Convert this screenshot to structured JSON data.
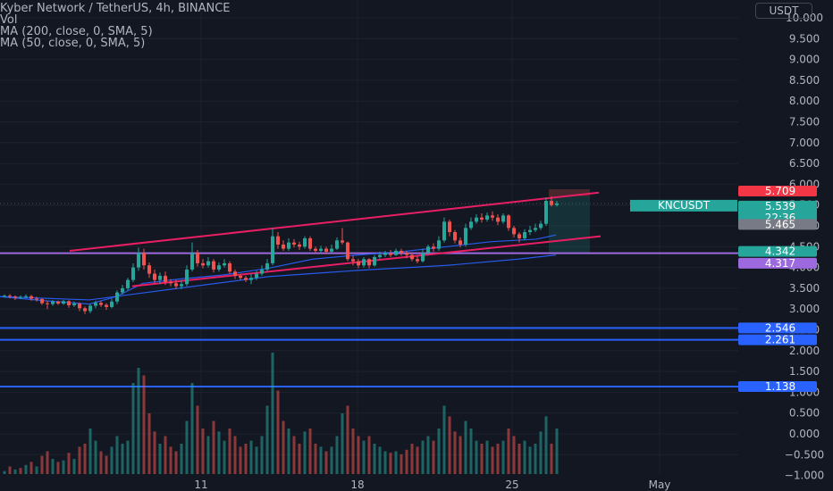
{
  "legend": {
    "symbol": "Kyber Network / TetherUS, 4h, BINANCE",
    "vol": "Vol",
    "ma200": "MA (200, close, 0, SMA, 5)",
    "ma50": "MA (50, close, 0, SMA, 5)"
  },
  "currency": "USDT",
  "symbol_badge": "KNCUSDT",
  "countdown": "22:36",
  "colors": {
    "background": "#131722",
    "up": "#26a69a",
    "down": "#ef5350",
    "channel": "#e91e63",
    "ma": "#2962ff",
    "purple_line": "#9c6ade",
    "blue_line": "#2962ff",
    "axis_text": "#b2b5be"
  },
  "chart_data": {
    "type": "candlestick",
    "y_axis": {
      "ticks": [
        "−1.000",
        "−0.500",
        "0.000",
        "0.500",
        "1.000",
        "1.500",
        "2.000",
        "2.500",
        "3.000",
        "3.500",
        "4.000",
        "4.500",
        "5.000",
        "5.500",
        "6.000",
        "6.500",
        "7.000",
        "7.500",
        "8.000",
        "8.500",
        "9.000",
        "9.500",
        "10.000"
      ],
      "range": [
        -1.0,
        10.0
      ]
    },
    "x_axis": {
      "ticks": [
        "11",
        "18",
        "25",
        "May"
      ]
    },
    "price_labels": [
      {
        "value": "5.709",
        "kind": "high"
      },
      {
        "value": "5.539",
        "kind": "last"
      },
      {
        "value": "5.465",
        "kind": "low"
      },
      {
        "value": "4.342",
        "kind": "line"
      },
      {
        "value": "4.317",
        "kind": "line2"
      },
      {
        "value": "2.546",
        "kind": "level"
      },
      {
        "value": "2.261",
        "kind": "level"
      },
      {
        "value": "1.138",
        "kind": "level"
      }
    ],
    "horizontal_levels": [
      {
        "value": 4.342,
        "color": "#9c6ade"
      },
      {
        "value": 2.546,
        "color": "#2962ff"
      },
      {
        "value": 2.261,
        "color": "#2962ff"
      },
      {
        "value": 1.138,
        "color": "#2962ff"
      }
    ],
    "channel_upper": [
      [
        78,
        4.4
      ],
      [
        670,
        5.8
      ]
    ],
    "channel_lower": [
      [
        148,
        3.55
      ],
      [
        672,
        4.75
      ]
    ],
    "ma200": [
      [
        0,
        3.3
      ],
      [
        100,
        3.22
      ],
      [
        200,
        3.5
      ],
      [
        300,
        3.78
      ],
      [
        400,
        3.93
      ],
      [
        500,
        4.05
      ],
      [
        580,
        4.2
      ],
      [
        622,
        4.3
      ]
    ],
    "ma50": [
      [
        0,
        3.3
      ],
      [
        50,
        3.2
      ],
      [
        100,
        3.12
      ],
      [
        130,
        3.3
      ],
      [
        160,
        3.62
      ],
      [
        200,
        3.72
      ],
      [
        250,
        3.82
      ],
      [
        300,
        3.98
      ],
      [
        350,
        4.2
      ],
      [
        400,
        4.3
      ],
      [
        450,
        4.38
      ],
      [
        500,
        4.5
      ],
      [
        550,
        4.62
      ],
      [
        600,
        4.68
      ],
      [
        622,
        4.78
      ]
    ],
    "candles": [
      [
        5,
        3.3,
        3.32,
        3.35,
        3.28
      ],
      [
        11,
        3.32,
        3.3,
        3.36,
        3.26
      ],
      [
        17,
        3.3,
        3.27,
        3.33,
        3.22
      ],
      [
        23,
        3.27,
        3.29,
        3.33,
        3.24
      ],
      [
        29,
        3.29,
        3.31,
        3.35,
        3.26
      ],
      [
        35,
        3.31,
        3.25,
        3.34,
        3.2
      ],
      [
        41,
        3.25,
        3.24,
        3.3,
        3.18
      ],
      [
        47,
        3.24,
        3.14,
        3.26,
        3.1
      ],
      [
        53,
        3.14,
        3.12,
        3.2,
        3.0
      ],
      [
        59,
        3.12,
        3.18,
        3.22,
        3.08
      ],
      [
        65,
        3.18,
        3.13,
        3.2,
        3.1
      ],
      [
        71,
        3.13,
        3.19,
        3.22,
        3.1
      ],
      [
        77,
        3.19,
        3.09,
        3.21,
        3.03
      ],
      [
        83,
        3.09,
        3.13,
        3.18,
        3.05
      ],
      [
        89,
        3.13,
        3.02,
        3.16,
        2.95
      ],
      [
        95,
        3.02,
        2.95,
        3.06,
        2.88
      ],
      [
        101,
        2.95,
        3.08,
        3.12,
        2.9
      ],
      [
        107,
        3.08,
        3.15,
        3.2,
        3.02
      ],
      [
        113,
        3.15,
        3.1,
        3.2,
        3.05
      ],
      [
        119,
        3.1,
        3.05,
        3.14,
        2.98
      ],
      [
        125,
        3.05,
        3.18,
        3.25,
        3.02
      ],
      [
        131,
        3.18,
        3.4,
        3.45,
        3.12
      ],
      [
        137,
        3.4,
        3.5,
        3.58,
        3.35
      ],
      [
        143,
        3.5,
        3.7,
        3.75,
        3.45
      ],
      [
        149,
        3.7,
        4.0,
        4.1,
        3.65
      ],
      [
        155,
        4.0,
        4.35,
        4.48,
        3.92
      ],
      [
        161,
        4.35,
        4.05,
        4.45,
        3.95
      ],
      [
        167,
        4.05,
        3.85,
        4.12,
        3.75
      ],
      [
        173,
        3.85,
        3.7,
        3.95,
        3.62
      ],
      [
        179,
        3.7,
        3.8,
        3.88,
        3.6
      ],
      [
        185,
        3.8,
        3.65,
        3.9,
        3.58
      ],
      [
        191,
        3.65,
        3.62,
        3.72,
        3.55
      ],
      [
        197,
        3.62,
        3.55,
        3.7,
        3.48
      ],
      [
        203,
        3.55,
        3.6,
        3.7,
        3.48
      ],
      [
        209,
        3.6,
        3.95,
        4.05,
        3.55
      ],
      [
        215,
        3.95,
        4.35,
        4.6,
        3.9
      ],
      [
        221,
        4.35,
        4.1,
        4.42,
        4.02
      ],
      [
        227,
        4.1,
        4.05,
        4.2,
        3.98
      ],
      [
        233,
        4.05,
        4.15,
        4.25,
        4.0
      ],
      [
        239,
        4.15,
        3.95,
        4.2,
        3.88
      ],
      [
        245,
        3.95,
        4.05,
        4.12,
        3.9
      ],
      [
        251,
        4.05,
        4.1,
        4.2,
        4.0
      ],
      [
        257,
        4.1,
        3.9,
        4.15,
        3.85
      ],
      [
        263,
        3.9,
        3.8,
        3.95,
        3.72
      ],
      [
        269,
        3.8,
        3.75,
        3.85,
        3.7
      ],
      [
        275,
        3.75,
        3.7,
        3.8,
        3.65
      ],
      [
        281,
        3.7,
        3.75,
        3.85,
        3.6
      ],
      [
        287,
        3.75,
        3.85,
        3.92,
        3.7
      ],
      [
        293,
        3.85,
        3.95,
        4.05,
        3.8
      ],
      [
        299,
        3.95,
        4.1,
        4.2,
        3.9
      ],
      [
        305,
        4.1,
        4.75,
        4.95,
        4.05
      ],
      [
        311,
        4.75,
        4.55,
        4.85,
        4.45
      ],
      [
        317,
        4.55,
        4.45,
        4.65,
        4.4
      ],
      [
        323,
        4.45,
        4.6,
        4.7,
        4.4
      ],
      [
        329,
        4.6,
        4.55,
        4.68,
        4.48
      ],
      [
        335,
        4.55,
        4.5,
        4.62,
        4.42
      ],
      [
        341,
        4.5,
        4.7,
        4.75,
        4.45
      ],
      [
        347,
        4.7,
        4.45,
        4.75,
        4.4
      ],
      [
        353,
        4.45,
        4.4,
        4.5,
        4.35
      ],
      [
        359,
        4.4,
        4.45,
        4.52,
        4.35
      ],
      [
        365,
        4.45,
        4.38,
        4.5,
        4.32
      ],
      [
        371,
        4.38,
        4.45,
        4.55,
        4.35
      ],
      [
        377,
        4.45,
        4.65,
        4.72,
        4.42
      ],
      [
        383,
        4.65,
        4.6,
        4.95,
        4.55
      ],
      [
        389,
        4.6,
        4.2,
        4.62,
        4.15
      ],
      [
        395,
        4.2,
        4.15,
        4.28,
        4.05
      ],
      [
        401,
        4.15,
        4.05,
        4.2,
        3.98
      ],
      [
        407,
        4.05,
        4.2,
        4.25,
        4.0
      ],
      [
        413,
        4.2,
        4.05,
        4.22,
        3.98
      ],
      [
        419,
        4.05,
        4.25,
        4.3,
        4.02
      ],
      [
        425,
        4.25,
        4.3,
        4.38,
        4.2
      ],
      [
        431,
        4.3,
        4.35,
        4.4,
        4.25
      ],
      [
        437,
        4.35,
        4.3,
        4.42,
        4.25
      ],
      [
        443,
        4.3,
        4.4,
        4.45,
        4.28
      ],
      [
        449,
        4.4,
        4.35,
        4.45,
        4.28
      ],
      [
        455,
        4.35,
        4.3,
        4.4,
        4.22
      ],
      [
        461,
        4.3,
        4.2,
        4.35,
        4.15
      ],
      [
        467,
        4.2,
        4.15,
        4.28,
        4.1
      ],
      [
        473,
        4.15,
        4.35,
        4.45,
        4.12
      ],
      [
        479,
        4.35,
        4.5,
        4.55,
        4.3
      ],
      [
        485,
        4.5,
        4.45,
        4.58,
        4.38
      ],
      [
        491,
        4.45,
        4.65,
        4.75,
        4.4
      ],
      [
        497,
        4.65,
        5.1,
        5.2,
        4.6
      ],
      [
        503,
        5.1,
        4.85,
        5.15,
        4.75
      ],
      [
        509,
        4.85,
        4.65,
        4.9,
        4.58
      ],
      [
        515,
        4.65,
        4.55,
        4.72,
        4.48
      ],
      [
        521,
        4.55,
        4.95,
        5.05,
        4.5
      ],
      [
        527,
        4.95,
        5.1,
        5.2,
        4.9
      ],
      [
        533,
        5.1,
        5.2,
        5.28,
        5.05
      ],
      [
        539,
        5.2,
        5.15,
        5.3,
        5.08
      ],
      [
        545,
        5.15,
        5.25,
        5.32,
        5.1
      ],
      [
        551,
        5.25,
        5.2,
        5.35,
        5.12
      ],
      [
        557,
        5.2,
        5.1,
        5.28,
        5.02
      ],
      [
        563,
        5.1,
        5.25,
        5.3,
        5.05
      ],
      [
        569,
        5.25,
        4.95,
        5.28,
        4.88
      ],
      [
        575,
        4.95,
        4.8,
        5.0,
        4.72
      ],
      [
        581,
        4.8,
        4.7,
        4.85,
        4.6
      ],
      [
        587,
        4.7,
        4.85,
        4.92,
        4.65
      ],
      [
        593,
        4.85,
        4.9,
        5.0,
        4.78
      ],
      [
        599,
        4.9,
        4.95,
        5.05,
        4.85
      ],
      [
        605,
        4.95,
        5.05,
        5.12,
        4.9
      ],
      [
        611,
        5.05,
        5.6,
        5.68,
        5.0
      ],
      [
        617,
        5.6,
        5.5,
        5.709,
        5.465
      ],
      [
        623,
        5.5,
        5.539,
        5.6,
        5.465
      ]
    ],
    "volumes": [
      [
        5,
        0.02,
        1
      ],
      [
        11,
        0.05,
        0
      ],
      [
        17,
        0.03,
        1
      ],
      [
        23,
        0.04,
        0
      ],
      [
        29,
        0.06,
        1
      ],
      [
        35,
        0.08,
        0
      ],
      [
        41,
        0.05,
        1
      ],
      [
        47,
        0.12,
        0
      ],
      [
        53,
        0.15,
        0
      ],
      [
        59,
        0.1,
        1
      ],
      [
        65,
        0.08,
        0
      ],
      [
        71,
        0.09,
        1
      ],
      [
        77,
        0.14,
        0
      ],
      [
        83,
        0.1,
        1
      ],
      [
        89,
        0.18,
        0
      ],
      [
        95,
        0.2,
        0
      ],
      [
        101,
        0.3,
        1
      ],
      [
        107,
        0.22,
        1
      ],
      [
        113,
        0.15,
        0
      ],
      [
        119,
        0.12,
        0
      ],
      [
        125,
        0.18,
        1
      ],
      [
        131,
        0.25,
        1
      ],
      [
        137,
        0.2,
        1
      ],
      [
        143,
        0.22,
        1
      ],
      [
        149,
        0.6,
        1
      ],
      [
        155,
        0.7,
        1
      ],
      [
        161,
        0.65,
        0
      ],
      [
        167,
        0.4,
        0
      ],
      [
        173,
        0.28,
        0
      ],
      [
        179,
        0.2,
        1
      ],
      [
        185,
        0.25,
        0
      ],
      [
        191,
        0.18,
        0
      ],
      [
        197,
        0.15,
        0
      ],
      [
        203,
        0.2,
        1
      ],
      [
        209,
        0.35,
        1
      ],
      [
        215,
        0.6,
        1
      ],
      [
        221,
        0.45,
        0
      ],
      [
        227,
        0.3,
        0
      ],
      [
        233,
        0.25,
        1
      ],
      [
        239,
        0.35,
        0
      ],
      [
        245,
        0.28,
        1
      ],
      [
        251,
        0.22,
        1
      ],
      [
        257,
        0.3,
        0
      ],
      [
        263,
        0.25,
        0
      ],
      [
        269,
        0.18,
        0
      ],
      [
        275,
        0.2,
        0
      ],
      [
        281,
        0.22,
        1
      ],
      [
        287,
        0.18,
        1
      ],
      [
        293,
        0.25,
        1
      ],
      [
        299,
        0.45,
        1
      ],
      [
        305,
        0.8,
        1
      ],
      [
        311,
        0.55,
        0
      ],
      [
        317,
        0.35,
        0
      ],
      [
        323,
        0.3,
        1
      ],
      [
        329,
        0.25,
        0
      ],
      [
        335,
        0.2,
        0
      ],
      [
        341,
        0.28,
        1
      ],
      [
        347,
        0.3,
        0
      ],
      [
        353,
        0.2,
        0
      ],
      [
        359,
        0.18,
        1
      ],
      [
        365,
        0.15,
        0
      ],
      [
        371,
        0.18,
        1
      ],
      [
        377,
        0.25,
        1
      ],
      [
        383,
        0.4,
        1
      ],
      [
        389,
        0.45,
        0
      ],
      [
        395,
        0.3,
        0
      ],
      [
        401,
        0.25,
        0
      ],
      [
        407,
        0.22,
        1
      ],
      [
        413,
        0.25,
        0
      ],
      [
        419,
        0.2,
        1
      ],
      [
        425,
        0.18,
        1
      ],
      [
        431,
        0.15,
        1
      ],
      [
        437,
        0.14,
        0
      ],
      [
        443,
        0.15,
        1
      ],
      [
        449,
        0.13,
        0
      ],
      [
        455,
        0.16,
        0
      ],
      [
        461,
        0.2,
        0
      ],
      [
        467,
        0.18,
        0
      ],
      [
        473,
        0.22,
        1
      ],
      [
        479,
        0.25,
        1
      ],
      [
        485,
        0.22,
        0
      ],
      [
        491,
        0.3,
        1
      ],
      [
        497,
        0.45,
        1
      ],
      [
        503,
        0.38,
        0
      ],
      [
        509,
        0.28,
        0
      ],
      [
        515,
        0.25,
        0
      ],
      [
        521,
        0.35,
        1
      ],
      [
        527,
        0.3,
        1
      ],
      [
        533,
        0.22,
        1
      ],
      [
        539,
        0.2,
        0
      ],
      [
        545,
        0.22,
        1
      ],
      [
        551,
        0.18,
        0
      ],
      [
        557,
        0.2,
        0
      ],
      [
        563,
        0.22,
        1
      ],
      [
        569,
        0.3,
        0
      ],
      [
        575,
        0.25,
        0
      ],
      [
        581,
        0.2,
        0
      ],
      [
        587,
        0.22,
        1
      ],
      [
        593,
        0.18,
        1
      ],
      [
        599,
        0.2,
        1
      ],
      [
        605,
        0.28,
        1
      ],
      [
        611,
        0.38,
        1
      ],
      [
        617,
        0.2,
        0
      ],
      [
        623,
        0.3,
        1
      ]
    ]
  }
}
